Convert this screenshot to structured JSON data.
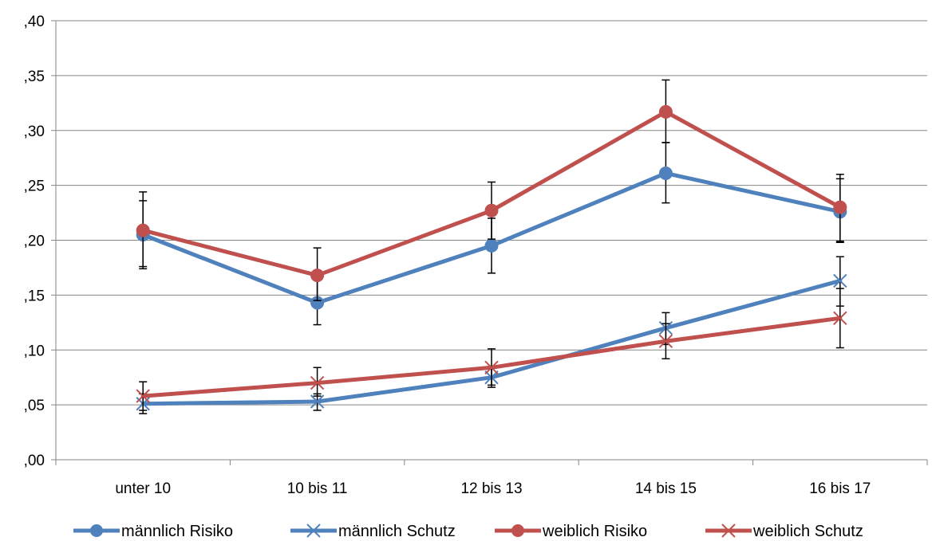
{
  "chart_data": {
    "type": "line",
    "title": "",
    "xlabel": "",
    "ylabel": "",
    "categories": [
      "unter 10",
      "10 bis 11",
      "12 bis 13",
      "14 bis 15",
      "16 bis 17"
    ],
    "ylim": [
      0,
      0.4
    ],
    "y_ticks": [
      0.0,
      0.05,
      0.1,
      0.15,
      0.2,
      0.25,
      0.3,
      0.35,
      0.4
    ],
    "y_tick_labels": [
      ",00",
      ",05",
      ",10",
      ",15",
      ",20",
      ",25",
      ",30",
      ",35",
      ",40"
    ],
    "grid": "horizontal",
    "legend_position": "bottom",
    "series": [
      {
        "name": "männlich Risiko",
        "color": "#4F81BD",
        "marker": "circle",
        "values": [
          0.205,
          0.143,
          0.195,
          0.261,
          0.226
        ],
        "error_low": [
          0.174,
          0.123,
          0.17,
          0.234,
          0.199
        ],
        "error_high": [
          0.236,
          0.165,
          0.22,
          0.289,
          0.256
        ]
      },
      {
        "name": "männlich Schutz",
        "color": "#4F81BD",
        "marker": "x",
        "values": [
          0.051,
          0.053,
          0.075,
          0.12,
          0.163
        ],
        "error_low": [
          0.042,
          0.045,
          0.066,
          0.105,
          0.14
        ],
        "error_high": [
          0.06,
          0.06,
          0.085,
          0.134,
          0.185
        ]
      },
      {
        "name": "weiblich Risiko",
        "color": "#C0504D",
        "marker": "circle",
        "values": [
          0.209,
          0.168,
          0.227,
          0.317,
          0.23
        ],
        "error_low": [
          0.176,
          0.145,
          0.201,
          0.289,
          0.198
        ],
        "error_high": [
          0.244,
          0.193,
          0.253,
          0.346,
          0.26
        ]
      },
      {
        "name": "weiblich Schutz",
        "color": "#C0504D",
        "marker": "x",
        "values": [
          0.058,
          0.07,
          0.084,
          0.108,
          0.129
        ],
        "error_low": [
          0.045,
          0.058,
          0.068,
          0.092,
          0.102
        ],
        "error_high": [
          0.071,
          0.084,
          0.101,
          0.124,
          0.156
        ]
      }
    ]
  }
}
